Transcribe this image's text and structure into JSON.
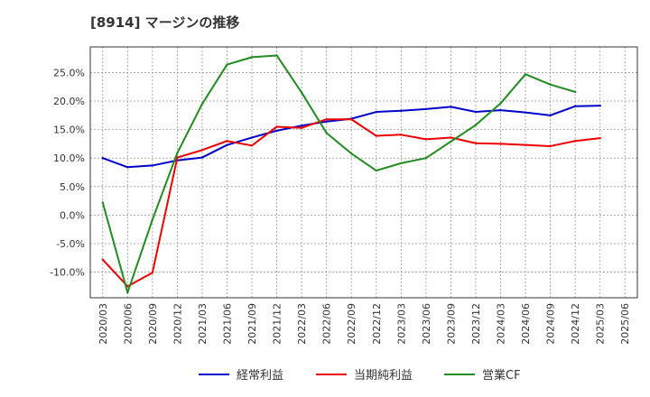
{
  "chart_data": {
    "type": "line",
    "title": "[8914]  マージンの推移",
    "xlabel": "",
    "ylabel": "",
    "ylim": [
      -14.5,
      29.5
    ],
    "yticks": [
      25.0,
      20.0,
      15.0,
      10.0,
      5.0,
      0.0,
      -5.0,
      -10.0
    ],
    "ytick_labels": [
      "25.0%",
      "20.0%",
      "15.0%",
      "10.0%",
      "5.0%",
      "0.0%",
      "-5.0%",
      "-10.0%"
    ],
    "categories": [
      "2020/03",
      "2020/06",
      "2020/09",
      "2020/12",
      "2021/03",
      "2021/06",
      "2021/09",
      "2021/12",
      "2022/03",
      "2022/06",
      "2022/09",
      "2022/12",
      "2023/03",
      "2023/06",
      "2023/09",
      "2023/12",
      "2024/03",
      "2024/06",
      "2024/09",
      "2024/12",
      "2025/03",
      "2025/06"
    ],
    "grid": true,
    "legend_position": "bottom",
    "series": [
      {
        "name": "経常利益",
        "color": "#0000cc",
        "values": [
          10.0,
          8.4,
          8.7,
          9.6,
          10.1,
          12.3,
          13.6,
          14.8,
          15.7,
          16.4,
          16.9,
          18.1,
          18.3,
          18.6,
          19.0,
          18.1,
          18.4,
          18.0,
          17.5,
          19.1,
          19.2,
          null
        ]
      },
      {
        "name": "当期純利益",
        "color": "#ee0000",
        "values": [
          -7.8,
          -12.5,
          -10.1,
          10.1,
          11.4,
          13.0,
          12.2,
          15.5,
          15.3,
          16.8,
          16.8,
          13.9,
          14.1,
          13.3,
          13.6,
          12.6,
          12.5,
          12.3,
          12.1,
          13.0,
          13.5,
          null
        ]
      },
      {
        "name": "営業CF",
        "color": "#228b22",
        "values": [
          2.2,
          -13.6,
          -0.8,
          10.9,
          19.5,
          26.4,
          27.7,
          28.0,
          21.5,
          14.4,
          10.8,
          7.8,
          9.1,
          10.0,
          12.9,
          15.8,
          19.6,
          24.7,
          22.9,
          21.6,
          null,
          null
        ]
      }
    ]
  }
}
